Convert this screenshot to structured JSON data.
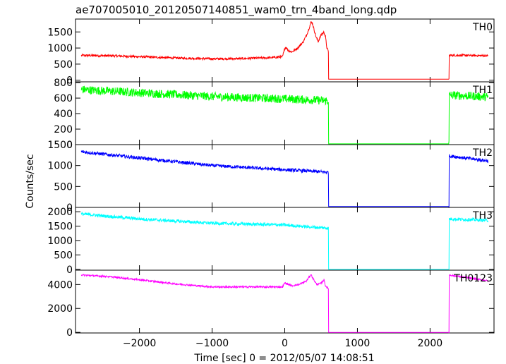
{
  "chart_data": {
    "type": "line",
    "title": "ae707005010_20120507140851_wam0_trn_4band_long.qdp",
    "xlabel": "Time [sec] 0 = 2012/05/07 14:08:51",
    "ylabel": "Counts/sec",
    "xlim": [
      -2880,
      2880
    ],
    "x_ticks": [
      -2000,
      -1000,
      0,
      1000,
      2000
    ],
    "x_tick_labels": [
      "−2000",
      "−1000",
      "0",
      "1000",
      "2000"
    ],
    "gap_interval": [
      600,
      2260
    ],
    "grid": false,
    "panels": [
      {
        "name": "TH0",
        "color": "#ff0000",
        "ylim": [
          -50,
          1900
        ],
        "y_ticks": [
          0,
          500,
          1000,
          1500
        ],
        "x": [
          -2800,
          -2400,
          -2000,
          -1500,
          -1000,
          -600,
          -200,
          -30,
          0,
          20,
          50,
          100,
          150,
          200,
          250,
          300,
          340,
          360,
          380,
          400,
          430,
          460,
          500,
          540,
          560,
          580,
          600,
          601,
          2260,
          2261,
          2300,
          2500,
          2800
        ],
        "y": [
          770,
          760,
          730,
          690,
          665,
          670,
          700,
          730,
          1000,
          1020,
          920,
          880,
          950,
          1050,
          1180,
          1400,
          1650,
          1800,
          1780,
          1600,
          1350,
          1200,
          1400,
          1500,
          1350,
          1000,
          900,
          30,
          30,
          770,
          775,
          770,
          760
        ],
        "noise": 35
      },
      {
        "name": "TH1",
        "color": "#00ff00",
        "ylim": [
          0,
          810
        ],
        "y_ticks": [
          0,
          200,
          400,
          600,
          800
        ],
        "x": [
          -2800,
          -2000,
          -1000,
          0,
          300,
          600,
          601,
          2260,
          2261,
          2800
        ],
        "y": [
          710,
          670,
          620,
          590,
          580,
          565,
          10,
          10,
          640,
          615
        ],
        "noise": 55
      },
      {
        "name": "TH2",
        "color": "#0000ff",
        "ylim": [
          0,
          1500
        ],
        "y_ticks": [
          0,
          500,
          1000,
          1500
        ],
        "x": [
          -2800,
          -2000,
          -1000,
          0,
          300,
          600,
          601,
          2260,
          2261,
          2800
        ],
        "y": [
          1330,
          1180,
          1000,
          900,
          870,
          840,
          20,
          20,
          1230,
          1110
        ],
        "noise": 40
      },
      {
        "name": "TH3",
        "color": "#00ffff",
        "ylim": [
          -30,
          2150
        ],
        "y_ticks": [
          0,
          500,
          1000,
          1500,
          2000
        ],
        "x": [
          -2800,
          -2000,
          -1000,
          0,
          300,
          600,
          601,
          2260,
          2261,
          2800
        ],
        "y": [
          1920,
          1750,
          1600,
          1540,
          1480,
          1430,
          0,
          0,
          1750,
          1700
        ],
        "noise": 55
      },
      {
        "name": "TH0123",
        "color": "#ff00ff",
        "ylim": [
          -50,
          5200
        ],
        "y_ticks": [
          0,
          2000,
          4000
        ],
        "x": [
          -2800,
          -2400,
          -2000,
          -1500,
          -1000,
          -500,
          -30,
          0,
          30,
          100,
          200,
          300,
          360,
          400,
          440,
          500,
          540,
          560,
          600,
          601,
          2260,
          2261,
          2800
        ],
        "y": [
          4800,
          4650,
          4400,
          4050,
          3800,
          3800,
          3800,
          4150,
          4050,
          3900,
          4000,
          4300,
          4850,
          4400,
          4000,
          4100,
          4400,
          3900,
          3650,
          0,
          0,
          4800,
          4300
        ],
        "noise": 70
      }
    ]
  }
}
